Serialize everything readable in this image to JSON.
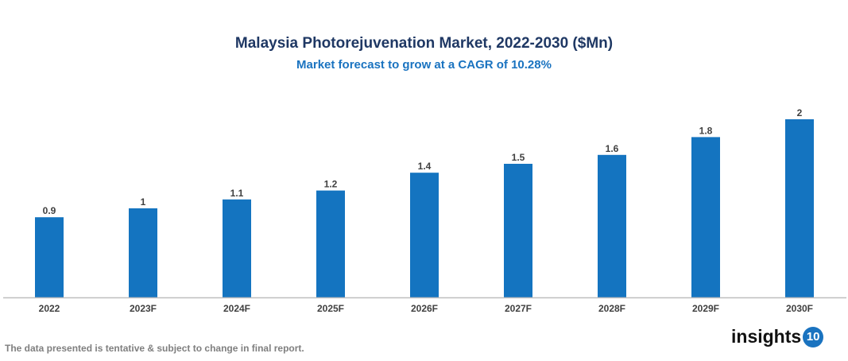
{
  "chart_data": {
    "type": "bar",
    "title": "Malaysia Photorejuvenation Market, 2022-2030 ($Mn)",
    "subtitle": "Market forecast to grow at a CAGR of 10.28%",
    "categories": [
      "2022",
      "2023F",
      "2024F",
      "2025F",
      "2026F",
      "2027F",
      "2028F",
      "2029F",
      "2030F"
    ],
    "values": [
      0.9,
      1,
      1.1,
      1.2,
      1.4,
      1.5,
      1.6,
      1.8,
      2
    ],
    "xlabel": "",
    "ylabel": "",
    "ylim": [
      0,
      2
    ],
    "grid": false,
    "bar_color": "#1474c0"
  },
  "footer": "The data presented is tentative & subject to change in final report.",
  "logo": {
    "text": "insights",
    "number": "10",
    "color": "#1a73c0"
  }
}
